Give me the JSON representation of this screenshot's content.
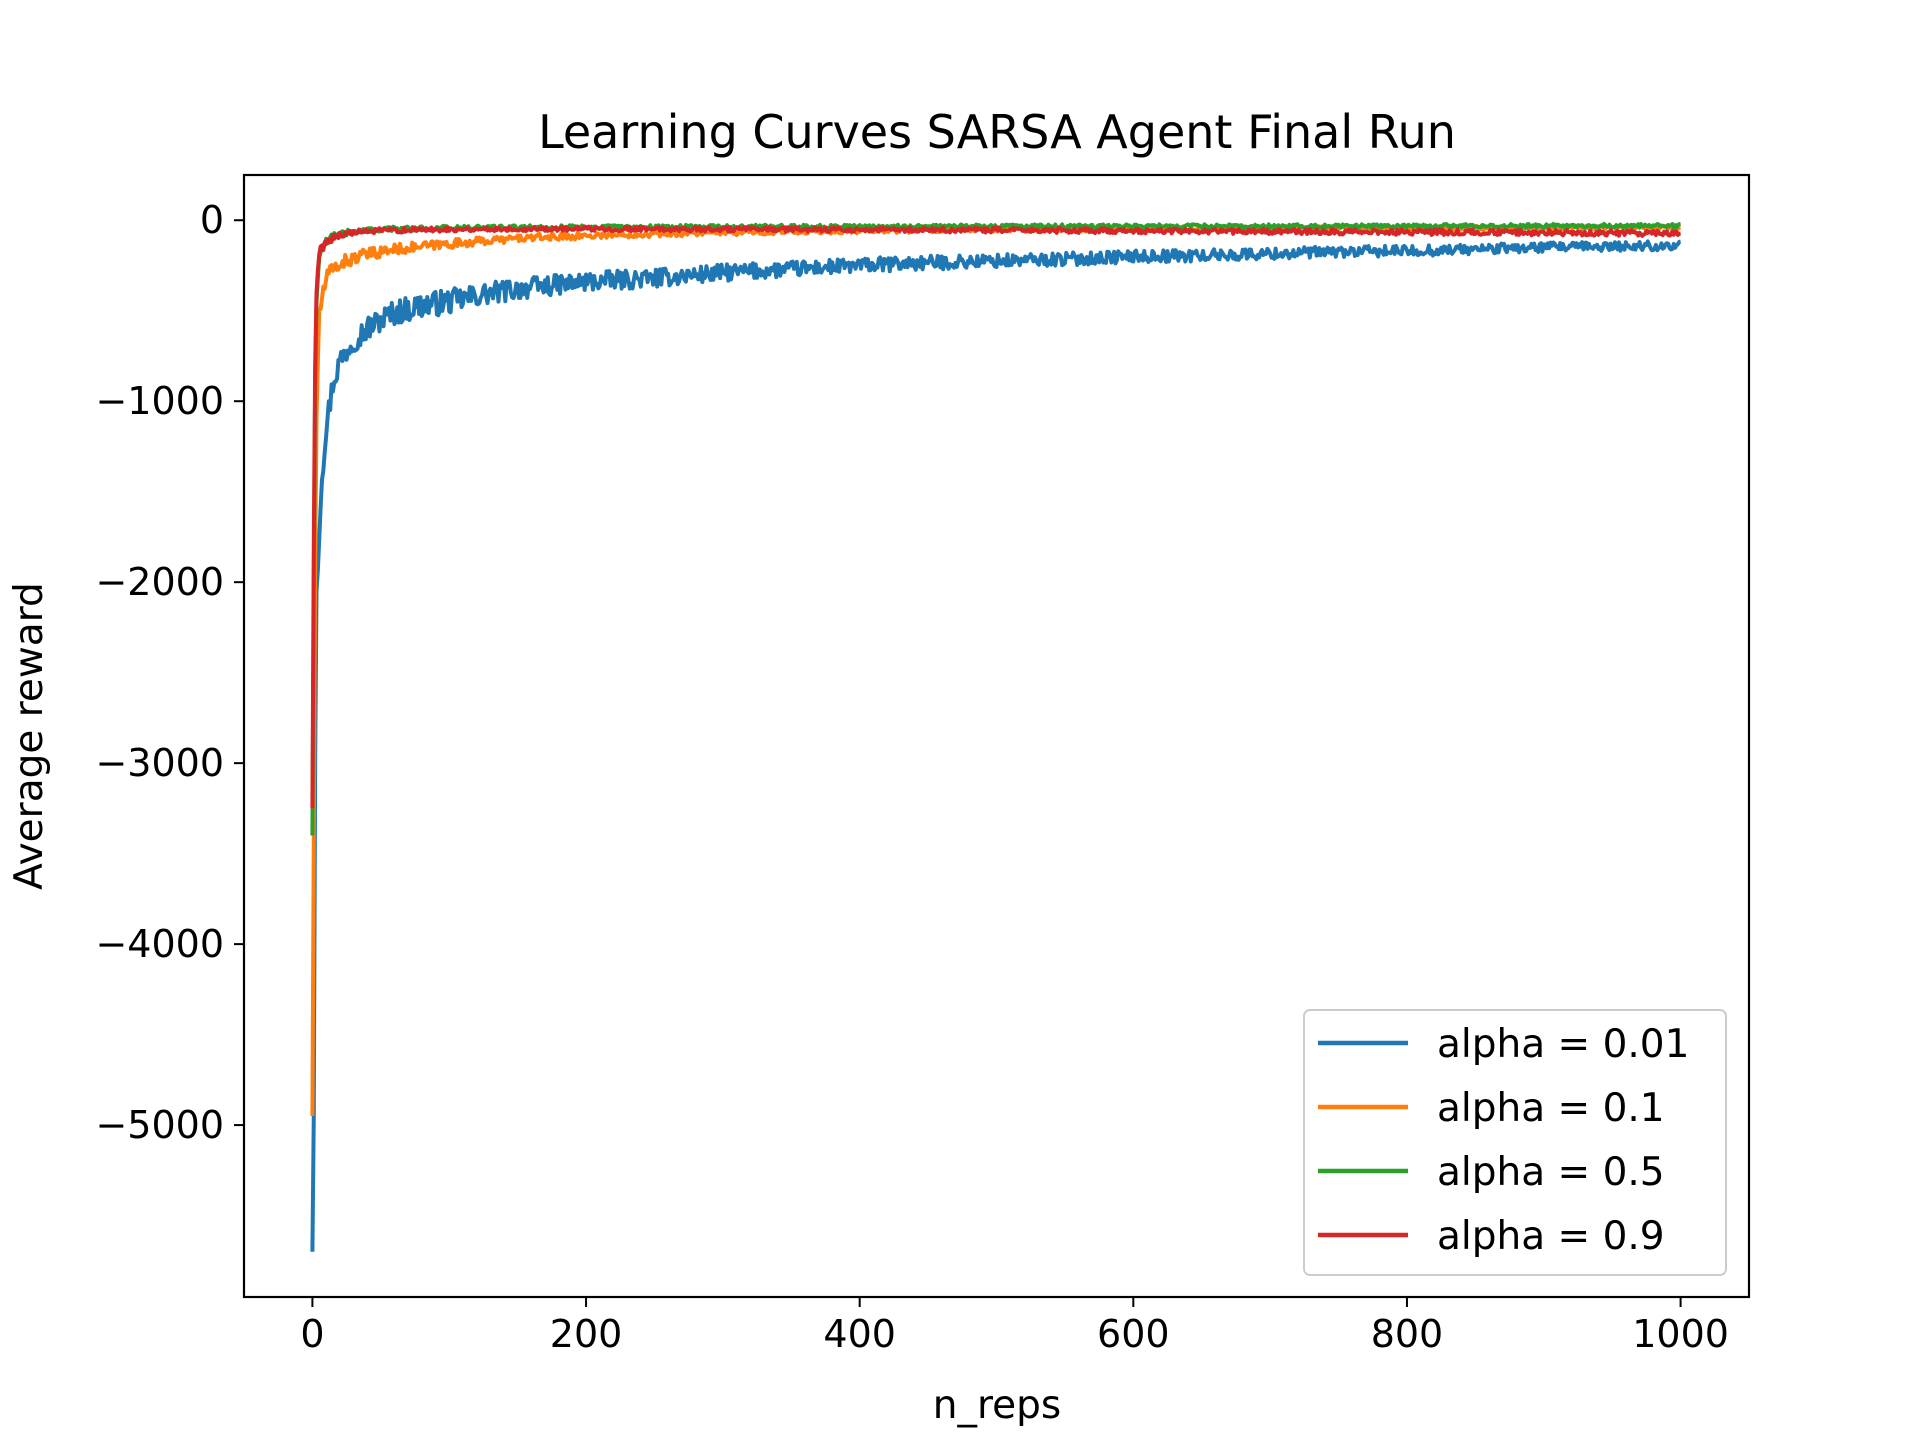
{
  "chart_data": {
    "type": "line",
    "title": "Learning Curves SARSA Agent Final Run",
    "xlabel": "n_reps",
    "ylabel": "Average reward",
    "xlim": [
      -50,
      1050
    ],
    "ylim": [
      -5950,
      250
    ],
    "xticks": [
      0,
      200,
      400,
      600,
      800,
      1000
    ],
    "yticks": [
      0,
      -1000,
      -2000,
      -3000,
      -4000,
      -5000
    ],
    "xtick_labels": [
      "0",
      "200",
      "400",
      "600",
      "800",
      "1000"
    ],
    "ytick_labels": [
      "0",
      "−1000",
      "−2000",
      "−3000",
      "−4000",
      "−5000"
    ],
    "grid": false,
    "legend_position": "lower-right",
    "series": [
      {
        "name": "alpha = 0.01",
        "color": "#1f77b4",
        "x": [
          0,
          1,
          2,
          3,
          4,
          5,
          7,
          10,
          15,
          20,
          30,
          40,
          50,
          60,
          80,
          100,
          125,
          150,
          175,
          200,
          250,
          300,
          350,
          400,
          450,
          500,
          550,
          600,
          650,
          700,
          750,
          800,
          850,
          900,
          950,
          1000
        ],
        "values": [
          -5700,
          -4950,
          -3000,
          -2050,
          -1900,
          -1700,
          -1400,
          -1150,
          -900,
          -780,
          -660,
          -600,
          -550,
          -510,
          -470,
          -450,
          -410,
          -380,
          -360,
          -340,
          -320,
          -290,
          -270,
          -250,
          -235,
          -225,
          -215,
          -200,
          -195,
          -185,
          -175,
          -170,
          -160,
          -150,
          -145,
          -140
        ]
      },
      {
        "name": "alpha = 0.1",
        "color": "#ff7f0e",
        "x": [
          0,
          1,
          2,
          3,
          4,
          5,
          7,
          10,
          15,
          20,
          30,
          40,
          50,
          60,
          80,
          100,
          125,
          150,
          200,
          250,
          300,
          350,
          400,
          500,
          600,
          700,
          800,
          900,
          1000
        ],
        "values": [
          -4950,
          -3400,
          -1900,
          -1100,
          -750,
          -550,
          -420,
          -330,
          -270,
          -240,
          -210,
          -190,
          -175,
          -160,
          -145,
          -130,
          -115,
          -100,
          -85,
          -75,
          -68,
          -62,
          -58,
          -52,
          -48,
          -46,
          -44,
          -42,
          -40
        ]
      },
      {
        "name": "alpha = 0.5",
        "color": "#2ca02c",
        "x": [
          0,
          1,
          2,
          3,
          4,
          5,
          7,
          10,
          15,
          20,
          30,
          40,
          50,
          60,
          80,
          100,
          150,
          200,
          300,
          400,
          500,
          600,
          700,
          800,
          900,
          1000
        ],
        "values": [
          -3400,
          -2000,
          -900,
          -450,
          -300,
          -220,
          -160,
          -120,
          -90,
          -75,
          -62,
          -55,
          -50,
          -48,
          -45,
          -42,
          -40,
          -38,
          -36,
          -35,
          -34,
          -33,
          -32,
          -32,
          -31,
          -30
        ]
      },
      {
        "name": "alpha = 0.9",
        "color": "#d62728",
        "x": [
          0,
          1,
          2,
          3,
          4,
          5,
          7,
          10,
          15,
          20,
          30,
          40,
          50,
          60,
          80,
          100,
          150,
          200,
          300,
          400,
          500,
          600,
          700,
          800,
          900,
          1000
        ],
        "values": [
          -3250,
          -1800,
          -800,
          -400,
          -260,
          -190,
          -150,
          -120,
          -95,
          -80,
          -70,
          -62,
          -58,
          -55,
          -52,
          -50,
          -48,
          -47,
          -50,
          -52,
          -55,
          -58,
          -62,
          -65,
          -68,
          -72
        ]
      }
    ]
  }
}
